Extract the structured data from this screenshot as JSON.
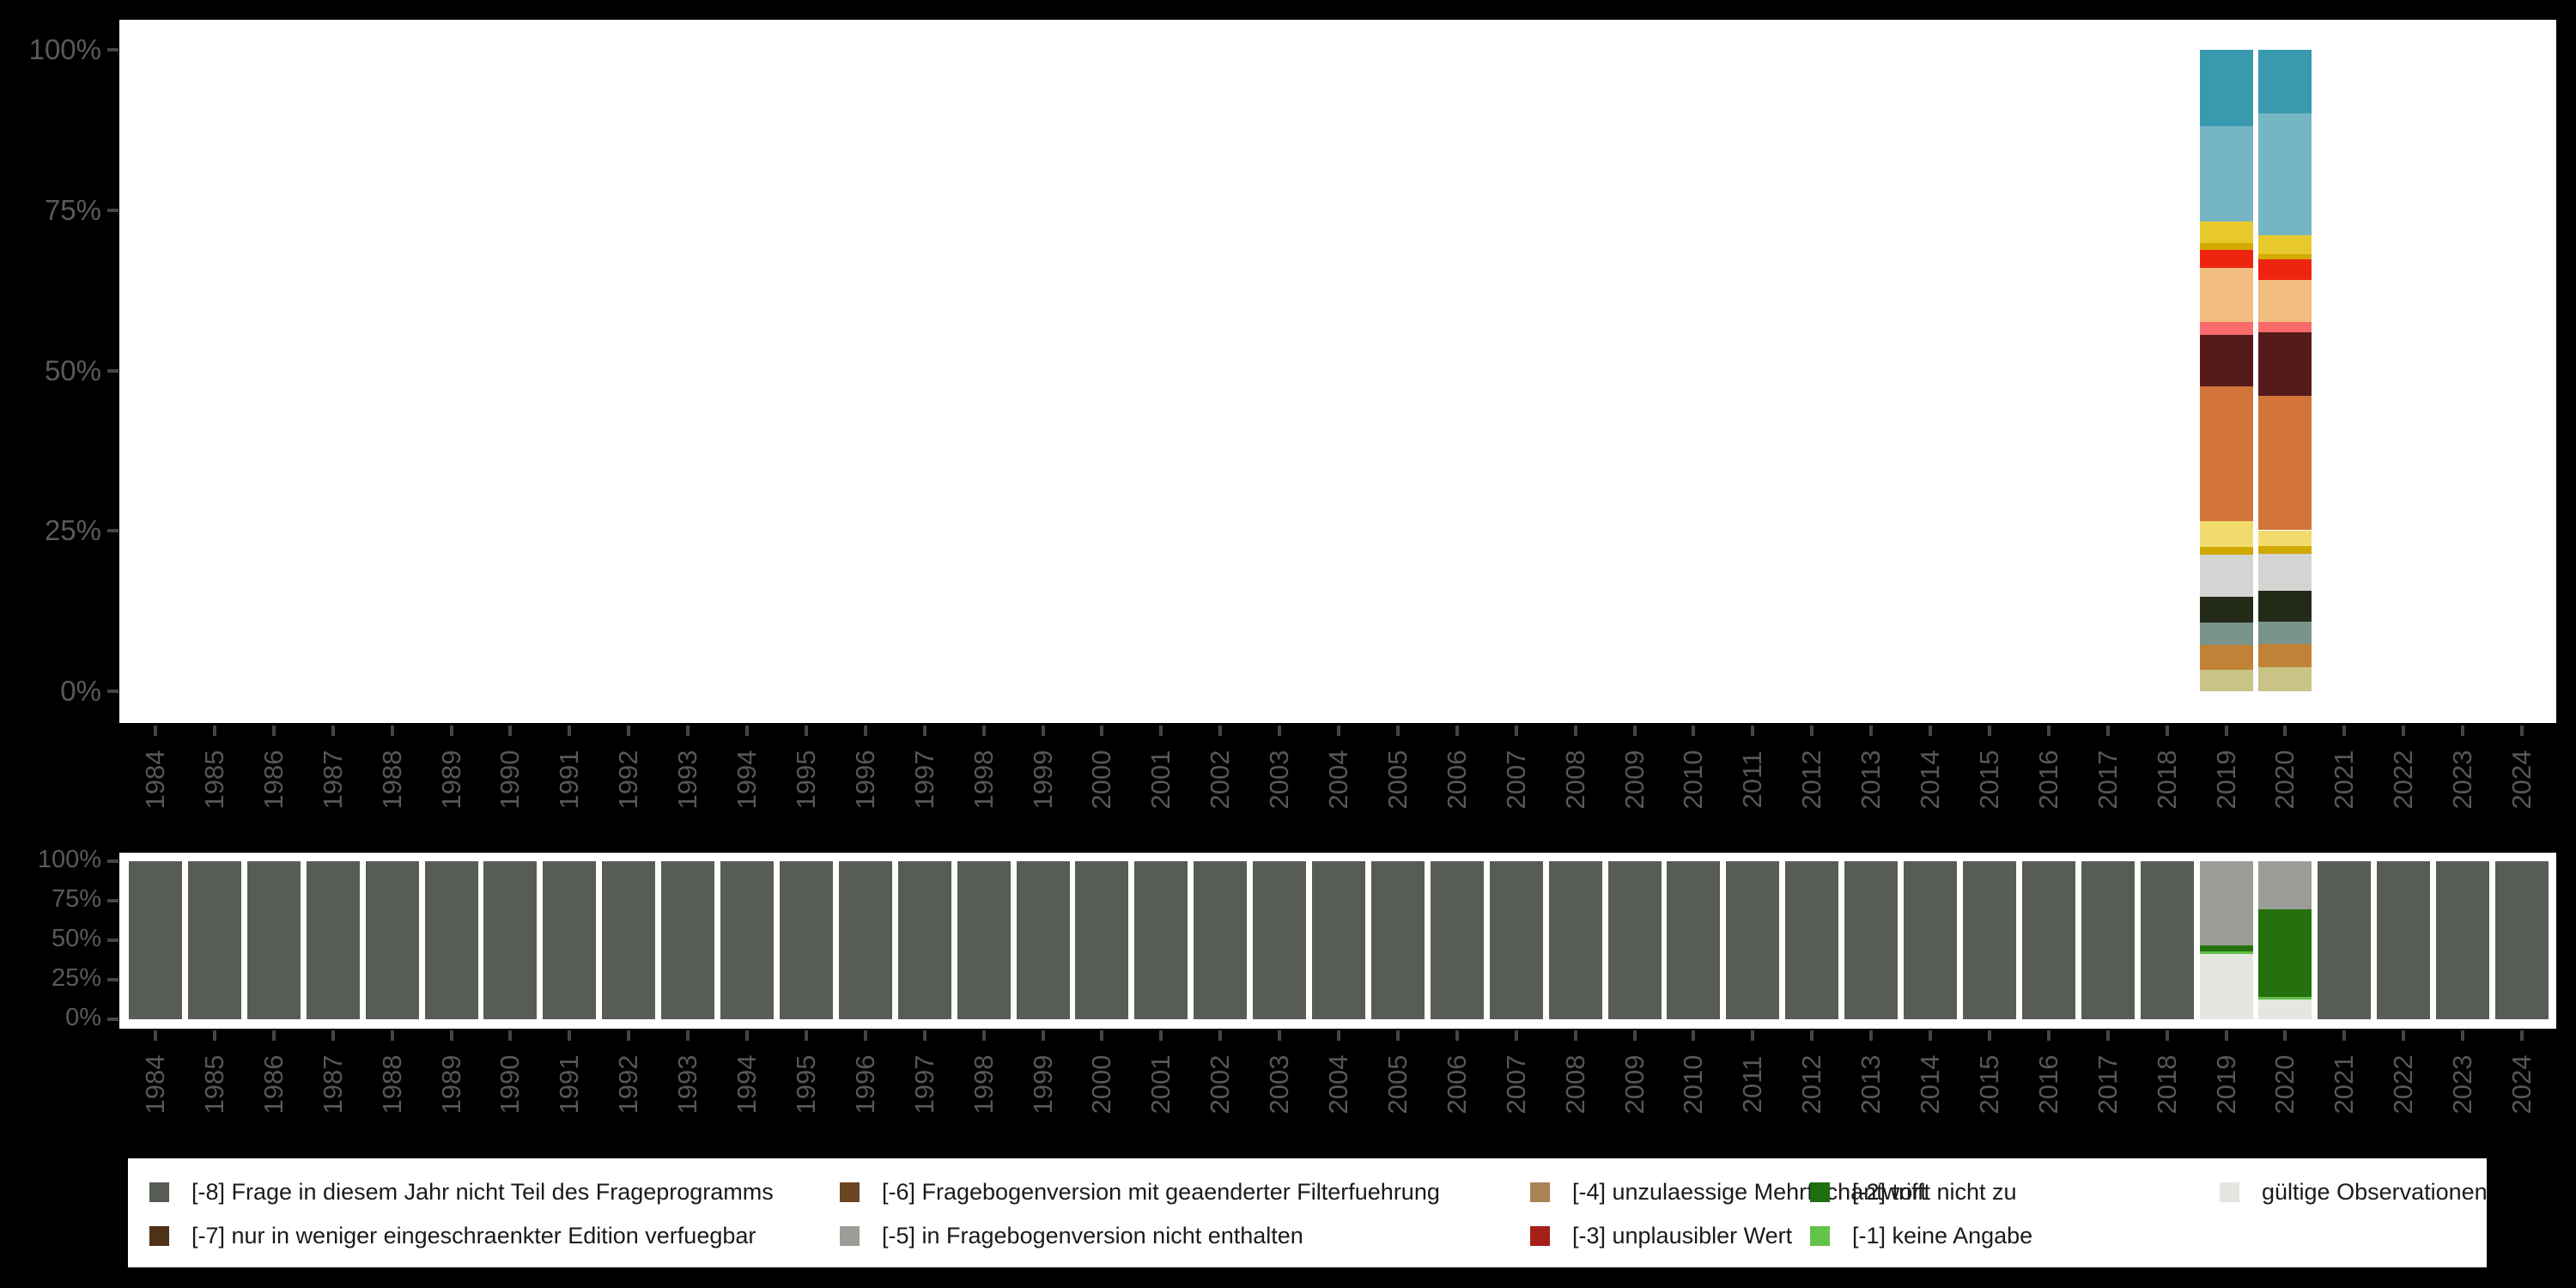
{
  "axes": {
    "percent_ticks": [
      "100%",
      "75%",
      "50%",
      "25%",
      "0%"
    ],
    "years": [
      "1984",
      "1985",
      "1986",
      "1987",
      "1988",
      "1989",
      "1990",
      "1991",
      "1992",
      "1993",
      "1994",
      "1995",
      "1996",
      "1997",
      "1998",
      "1999",
      "2000",
      "2001",
      "2002",
      "2003",
      "2004",
      "2005",
      "2006",
      "2007",
      "2008",
      "2009",
      "2010",
      "2011",
      "2012",
      "2013",
      "2014",
      "2015",
      "2016",
      "2017",
      "2018",
      "2019",
      "2020",
      "2021",
      "2022",
      "2023",
      "2024"
    ]
  },
  "chart_data": [
    {
      "type": "bar",
      "subtype": "stacked-percent",
      "name": "value-distribution-by-year",
      "title": "",
      "xlabel": "",
      "ylabel": "",
      "ylim": [
        0,
        100
      ],
      "grid": false,
      "x": [
        "1984",
        "1985",
        "1986",
        "1987",
        "1988",
        "1989",
        "1990",
        "1991",
        "1992",
        "1993",
        "1994",
        "1995",
        "1996",
        "1997",
        "1998",
        "1999",
        "2000",
        "2001",
        "2002",
        "2003",
        "2004",
        "2005",
        "2006",
        "2007",
        "2008",
        "2009",
        "2010",
        "2011",
        "2012",
        "2013",
        "2014",
        "2015",
        "2016",
        "2017",
        "2018",
        "2019",
        "2020",
        "2021",
        "2022",
        "2023",
        "2024"
      ],
      "bars": [
        {
          "year": "2019",
          "segments_top_to_bottom": [
            {
              "color": "#3999ae",
              "pct": 11.9
            },
            {
              "color": "#75b5c4",
              "pct": 14.9
            },
            {
              "color": "#e8c92d",
              "pct": 3.3
            },
            {
              "color": "#d4aa00",
              "pct": 1.1
            },
            {
              "color": "#ee2410",
              "pct": 2.8
            },
            {
              "color": "#f1bd80",
              "pct": 8.4
            },
            {
              "color": "#f96b6b",
              "pct": 2.1
            },
            {
              "color": "#551a1a",
              "pct": 8.0
            },
            {
              "color": "#d3743a",
              "pct": 21.0
            },
            {
              "color": "#f2dc6e",
              "pct": 4.0
            },
            {
              "color": "#d0a900",
              "pct": 1.2
            },
            {
              "color": "#d4d4d2",
              "pct": 6.6
            },
            {
              "color": "#242a18",
              "pct": 4.0
            },
            {
              "color": "#7a938b",
              "pct": 3.5
            },
            {
              "color": "#c08236",
              "pct": 3.9
            },
            {
              "color": "#c9c386",
              "pct": 3.3
            }
          ]
        },
        {
          "year": "2020",
          "segments_top_to_bottom": [
            {
              "color": "#3999ae",
              "pct": 9.9
            },
            {
              "color": "#75b5c4",
              "pct": 19.0
            },
            {
              "color": "#e8c92d",
              "pct": 2.9
            },
            {
              "color": "#d4aa00",
              "pct": 0.9
            },
            {
              "color": "#ee2410",
              "pct": 3.2
            },
            {
              "color": "#f1bd80",
              "pct": 6.5
            },
            {
              "color": "#f96b6b",
              "pct": 1.7
            },
            {
              "color": "#551a1a",
              "pct": 9.9
            },
            {
              "color": "#d3743a",
              "pct": 20.9
            },
            {
              "color": "#f2dc6e",
              "pct": 2.5
            },
            {
              "color": "#d0a900",
              "pct": 1.2
            },
            {
              "color": "#d4d4d2",
              "pct": 5.8
            },
            {
              "color": "#242a18",
              "pct": 4.8
            },
            {
              "color": "#7a938b",
              "pct": 3.5
            },
            {
              "color": "#c08236",
              "pct": 3.6
            },
            {
              "color": "#c9c386",
              "pct": 3.7
            }
          ]
        }
      ]
    },
    {
      "type": "bar",
      "subtype": "stacked-percent",
      "name": "missing-codes-by-year",
      "title": "",
      "xlabel": "",
      "ylabel": "",
      "ylim": [
        0,
        100
      ],
      "grid": false,
      "x": [
        "1984",
        "1985",
        "1986",
        "1987",
        "1988",
        "1989",
        "1990",
        "1991",
        "1992",
        "1993",
        "1994",
        "1995",
        "1996",
        "1997",
        "1998",
        "1999",
        "2000",
        "2001",
        "2002",
        "2003",
        "2004",
        "2005",
        "2006",
        "2007",
        "2008",
        "2009",
        "2010",
        "2011",
        "2012",
        "2013",
        "2014",
        "2015",
        "2016",
        "2017",
        "2018",
        "2019",
        "2020",
        "2021",
        "2022",
        "2023",
        "2024"
      ],
      "default_segments_top_to_bottom": [
        {
          "label": "[-8] Frage in diesem Jahr nicht Teil des Frageprogramms",
          "color": "#575d55",
          "pct": 100
        }
      ],
      "bars": [
        {
          "year": "2019",
          "segments_top_to_bottom": [
            {
              "label": "[-5] in Fragebogenversion nicht enthalten",
              "color": "#9a9e96",
              "pct": 53.4
            },
            {
              "label": "[-2] trifft nicht zu",
              "color": "#26710f",
              "pct": 3.8
            },
            {
              "label": "[-1] keine Angabe",
              "color": "#62bd4a",
              "pct": 1.6
            },
            {
              "label": "gültige Observationen",
              "color": "#e3e7e0",
              "pct": 41.2
            }
          ]
        },
        {
          "year": "2020",
          "segments_top_to_bottom": [
            {
              "label": "[-5] in Fragebogenversion nicht enthalten",
              "color": "#9a9e96",
              "pct": 30.6
            },
            {
              "label": "[-2] trifft nicht zu",
              "color": "#26710f",
              "pct": 55.3
            },
            {
              "label": "[-1] keine Angabe",
              "color": "#62bd4a",
              "pct": 1.6
            },
            {
              "label": "gültige Observationen",
              "color": "#e3e7e0",
              "pct": 12.5
            }
          ]
        }
      ]
    }
  ],
  "legend": {
    "items": [
      {
        "label": "[-8] Frage in diesem Jahr nicht Teil des Frageprogramms",
        "color": "#575d55",
        "col": 0,
        "row": 0
      },
      {
        "label": "[-7] nur in weniger eingeschraenkter Edition verfuegbar",
        "color": "#4f3318",
        "col": 0,
        "row": 1
      },
      {
        "label": "[-6] Fragebogenversion mit geaenderter Filterfuehrung",
        "color": "#6b4423",
        "col": 1,
        "row": 0
      },
      {
        "label": "[-5] in Fragebogenversion nicht enthalten",
        "color": "#9a9e96",
        "col": 1,
        "row": 1
      },
      {
        "label": "[-4] unzulaessige Mehrfachantwort",
        "color": "#a98255",
        "col": 2,
        "row": 0
      },
      {
        "label": "[-3] unplausibler Wert",
        "color": "#a62019",
        "col": 2,
        "row": 1
      },
      {
        "label": "[-2] trifft nicht zu",
        "color": "#1f6e10",
        "col": 3,
        "row": 0
      },
      {
        "label": "[-1] keine Angabe",
        "color": "#62c24a",
        "col": 3,
        "row": 1
      },
      {
        "label": "gültige Observationen",
        "color": "#e2e6df",
        "col": 4,
        "row": 0
      }
    ]
  }
}
